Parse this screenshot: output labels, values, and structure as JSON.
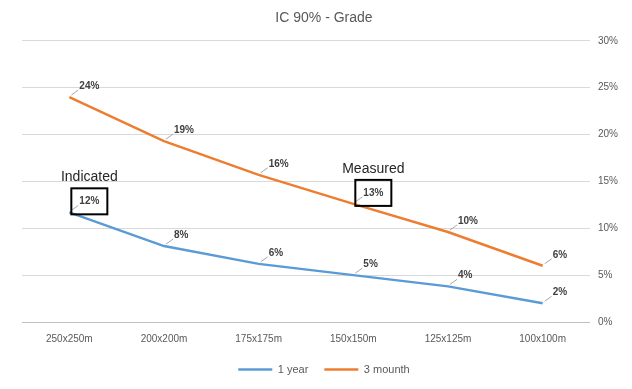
{
  "chart_data": {
    "type": "line",
    "title": "IC 90% - Grade",
    "categories": [
      "250x250m",
      "200x200m",
      "175x175m",
      "150x150m",
      "125x125m",
      "100x100m"
    ],
    "series": [
      {
        "name": "1 year",
        "color": "#5b9bd5",
        "values": [
          11.7,
          8.1,
          6.2,
          5.0,
          3.8,
          2.0
        ],
        "value_labels": [
          "12%",
          "8%",
          "6%",
          "5%",
          "4%",
          "2%"
        ]
      },
      {
        "name": "3 mounth",
        "color": "#ed7d31",
        "values": [
          24.0,
          19.3,
          15.7,
          12.6,
          9.6,
          6.0
        ],
        "value_labels": [
          "24%",
          "19%",
          "16%",
          "13%",
          "10%",
          "6%"
        ]
      }
    ],
    "ylim": [
      0,
      30
    ],
    "yticks": [
      {
        "value": 0,
        "label": "0%"
      },
      {
        "value": 5,
        "label": "5%"
      },
      {
        "value": 10,
        "label": "10%"
      },
      {
        "value": 15,
        "label": "15%"
      },
      {
        "value": 20,
        "label": "20%"
      },
      {
        "value": 25,
        "label": "25%"
      },
      {
        "value": 30,
        "label": "30%"
      }
    ],
    "grid": true,
    "legend": "bottom",
    "data_labels": true,
    "annotations": [
      {
        "text": "Indicated",
        "series": "1 year",
        "category": "250x250m"
      },
      {
        "text": "Measured",
        "series": "3 mounth",
        "category": "150x150m"
      }
    ]
  }
}
